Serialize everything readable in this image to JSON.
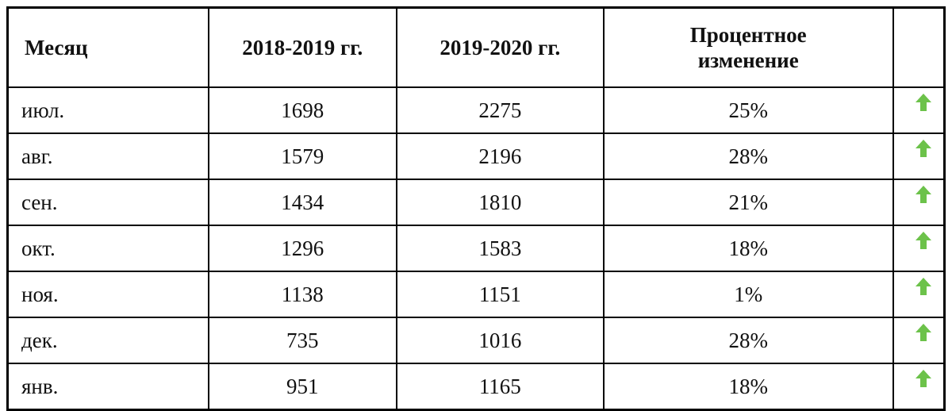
{
  "table": {
    "header": [
      "Месяц",
      "2018-2019 гг.",
      "2019-2020 гг.",
      "Процентное изменение"
    ],
    "rows": [
      [
        "июл.",
        1698,
        2275,
        "25%"
      ],
      [
        "авг.",
        1579,
        2196,
        "28%"
      ],
      [
        "сен.",
        1434,
        1810,
        "21%"
      ],
      [
        "окт.",
        1296,
        1583,
        "18%"
      ],
      [
        "ноя.",
        1138,
        1151,
        "1%"
      ],
      [
        "дек.",
        735,
        1016,
        "28%"
      ],
      [
        "янв.",
        951,
        1165,
        "18%"
      ]
    ]
  }
}
